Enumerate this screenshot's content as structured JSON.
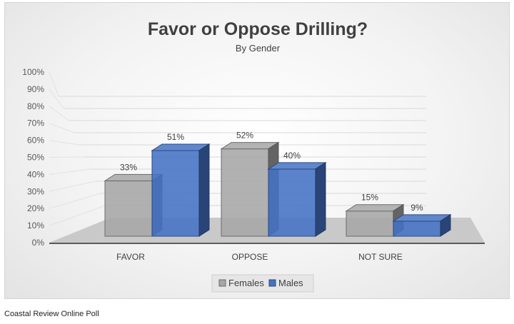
{
  "chart_data": {
    "type": "bar",
    "title": "Favor or Oppose Drilling?",
    "subtitle": "By Gender",
    "categories": [
      "FAVOR",
      "OPPOSE",
      "NOT SURE"
    ],
    "series": [
      {
        "name": "Females",
        "values": [
          33,
          52,
          15
        ],
        "labels": [
          "33%",
          "52%",
          "15%"
        ],
        "color": "#a6a6a6"
      },
      {
        "name": "Males",
        "values": [
          51,
          40,
          9
        ],
        "labels": [
          "51%",
          "40%",
          "9%"
        ],
        "color": "#4472c4"
      }
    ],
    "yticks": [
      "0%",
      "10%",
      "20%",
      "30%",
      "40%",
      "50%",
      "60%",
      "70%",
      "80%",
      "90%",
      "100%"
    ],
    "ylim": [
      0,
      100
    ],
    "grid": true,
    "legend_position": "bottom"
  },
  "footer": {
    "source": "Coastal Review Online Poll"
  }
}
